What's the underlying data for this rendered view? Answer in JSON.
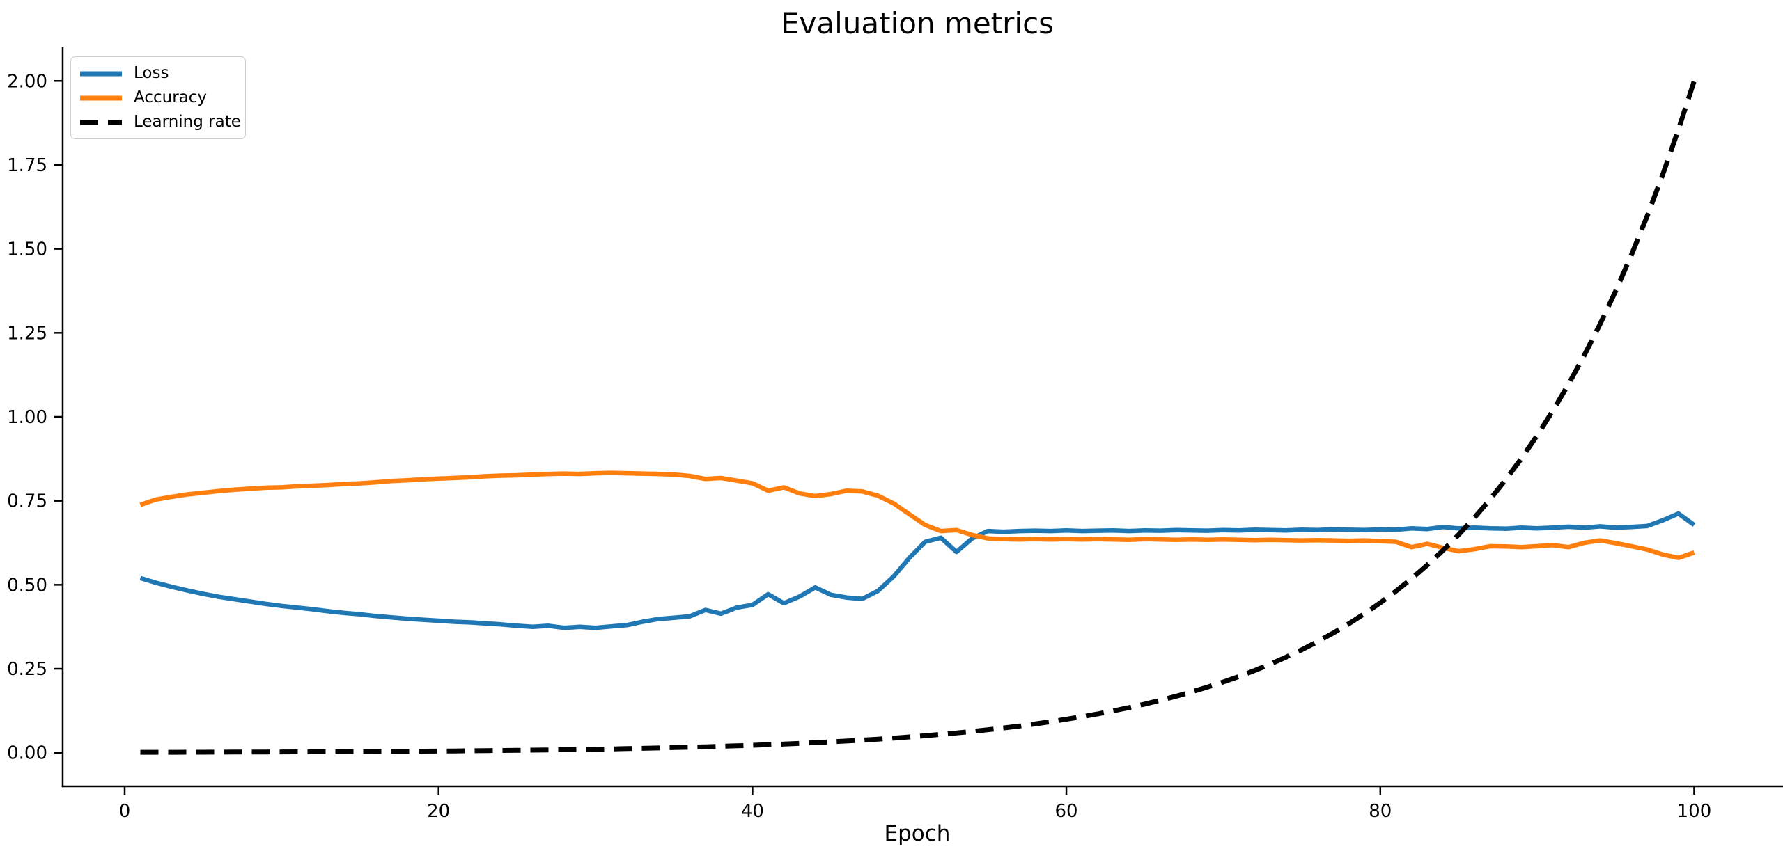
{
  "figure": {
    "background": "#ffffff"
  },
  "chart_data": {
    "type": "line",
    "title": "Evaluation metrics",
    "xlabel": "Epoch",
    "ylabel": "",
    "grid": false,
    "legend_position": "upper-left",
    "xlim": [
      -3.95,
      104.95
    ],
    "ylim": [
      -0.1,
      2.1
    ],
    "axis_color": "#000000",
    "text_color": "#000000",
    "xticks": [
      {
        "value": 0,
        "label": "0"
      },
      {
        "value": 20,
        "label": "20"
      },
      {
        "value": 40,
        "label": "40"
      },
      {
        "value": 60,
        "label": "60"
      },
      {
        "value": 80,
        "label": "80"
      },
      {
        "value": 100,
        "label": "100"
      }
    ],
    "yticks": [
      {
        "value": 0.0,
        "label": "0.00"
      },
      {
        "value": 0.25,
        "label": "0.25"
      },
      {
        "value": 0.5,
        "label": "0.50"
      },
      {
        "value": 0.75,
        "label": "0.75"
      },
      {
        "value": 1.0,
        "label": "1.00"
      },
      {
        "value": 1.25,
        "label": "1.25"
      },
      {
        "value": 1.5,
        "label": "1.50"
      },
      {
        "value": 1.75,
        "label": "1.75"
      },
      {
        "value": 2.0,
        "label": "2.00"
      }
    ],
    "x": [
      1,
      2,
      3,
      4,
      5,
      6,
      7,
      8,
      9,
      10,
      11,
      12,
      13,
      14,
      15,
      16,
      17,
      18,
      19,
      20,
      21,
      22,
      23,
      24,
      25,
      26,
      27,
      28,
      29,
      30,
      31,
      32,
      33,
      34,
      35,
      36,
      37,
      38,
      39,
      40,
      41,
      42,
      43,
      44,
      45,
      46,
      47,
      48,
      49,
      50,
      51,
      52,
      53,
      54,
      55,
      56,
      57,
      58,
      59,
      60,
      61,
      62,
      63,
      64,
      65,
      66,
      67,
      68,
      69,
      70,
      71,
      72,
      73,
      74,
      75,
      76,
      77,
      78,
      79,
      80,
      81,
      82,
      83,
      84,
      85,
      86,
      87,
      88,
      89,
      90,
      91,
      92,
      93,
      94,
      95,
      96,
      97,
      98,
      99,
      100
    ],
    "series": [
      {
        "name": "Loss",
        "color": "#1f77b4",
        "line_width": 6.5,
        "dash": null,
        "values": [
          0.52,
          0.506,
          0.494,
          0.483,
          0.473,
          0.464,
          0.457,
          0.45,
          0.443,
          0.437,
          0.432,
          0.427,
          0.421,
          0.416,
          0.412,
          0.407,
          0.403,
          0.399,
          0.396,
          0.393,
          0.39,
          0.388,
          0.385,
          0.382,
          0.378,
          0.375,
          0.378,
          0.372,
          0.375,
          0.372,
          0.376,
          0.38,
          0.39,
          0.398,
          0.402,
          0.406,
          0.425,
          0.414,
          0.432,
          0.44,
          0.472,
          0.445,
          0.465,
          0.492,
          0.47,
          0.462,
          0.458,
          0.482,
          0.525,
          0.58,
          0.628,
          0.64,
          0.598,
          0.638,
          0.66,
          0.658,
          0.66,
          0.661,
          0.66,
          0.662,
          0.66,
          0.661,
          0.662,
          0.66,
          0.662,
          0.661,
          0.663,
          0.662,
          0.661,
          0.663,
          0.662,
          0.664,
          0.663,
          0.662,
          0.664,
          0.663,
          0.665,
          0.664,
          0.663,
          0.665,
          0.664,
          0.668,
          0.666,
          0.672,
          0.668,
          0.67,
          0.668,
          0.667,
          0.67,
          0.668,
          0.67,
          0.673,
          0.67,
          0.674,
          0.67,
          0.672,
          0.675,
          0.692,
          0.712,
          0.678
        ]
      },
      {
        "name": "Accuracy",
        "color": "#ff7f0e",
        "line_width": 6.5,
        "dash": null,
        "values": [
          0.738,
          0.754,
          0.762,
          0.769,
          0.774,
          0.779,
          0.783,
          0.786,
          0.789,
          0.79,
          0.793,
          0.795,
          0.797,
          0.8,
          0.802,
          0.805,
          0.809,
          0.811,
          0.814,
          0.816,
          0.818,
          0.82,
          0.823,
          0.825,
          0.826,
          0.828,
          0.83,
          0.831,
          0.83,
          0.832,
          0.833,
          0.832,
          0.831,
          0.83,
          0.828,
          0.824,
          0.815,
          0.818,
          0.81,
          0.802,
          0.78,
          0.79,
          0.772,
          0.764,
          0.77,
          0.78,
          0.778,
          0.765,
          0.742,
          0.71,
          0.678,
          0.66,
          0.663,
          0.648,
          0.638,
          0.636,
          0.635,
          0.636,
          0.635,
          0.636,
          0.635,
          0.636,
          0.635,
          0.634,
          0.636,
          0.635,
          0.634,
          0.635,
          0.634,
          0.635,
          0.634,
          0.633,
          0.634,
          0.633,
          0.632,
          0.633,
          0.632,
          0.631,
          0.632,
          0.63,
          0.628,
          0.612,
          0.622,
          0.61,
          0.6,
          0.606,
          0.615,
          0.614,
          0.612,
          0.615,
          0.618,
          0.612,
          0.625,
          0.632,
          0.624,
          0.615,
          0.605,
          0.59,
          0.58,
          0.596
        ]
      },
      {
        "name": "Learning rate",
        "color": "#000000",
        "line_width": 7,
        "dash": [
          26,
          14
        ],
        "values": [
          0.0012,
          0.0013,
          0.0014,
          0.0015,
          0.0016,
          0.0017,
          0.0019,
          0.002,
          0.0022,
          0.0023,
          0.0025,
          0.0027,
          0.0029,
          0.0032,
          0.0034,
          0.0037,
          0.004,
          0.0043,
          0.0046,
          0.005,
          0.0053,
          0.0058,
          0.0062,
          0.0067,
          0.0072,
          0.0078,
          0.0084,
          0.009,
          0.0097,
          0.0105,
          0.0113,
          0.0122,
          0.0131,
          0.0142,
          0.0153,
          0.0165,
          0.0177,
          0.0191,
          0.0206,
          0.0222,
          0.024,
          0.0258,
          0.0278,
          0.03,
          0.0323,
          0.0348,
          0.0376,
          0.0405,
          0.0436,
          0.047,
          0.0507,
          0.0547,
          0.0589,
          0.0635,
          0.0684,
          0.0738,
          0.0795,
          0.0857,
          0.0924,
          0.0996,
          0.1073,
          0.1157,
          0.1247,
          0.1344,
          0.1449,
          0.1562,
          0.1683,
          0.1815,
          0.1956,
          0.2108,
          0.2272,
          0.2449,
          0.264,
          0.2846,
          0.3067,
          0.3306,
          0.3564,
          0.3841,
          0.4141,
          0.4463,
          0.4811,
          0.5185,
          0.5589,
          0.6025,
          0.6494,
          0.7,
          0.7545,
          0.8133,
          0.8766,
          0.9449,
          1.0185,
          1.0978,
          1.1833,
          1.2754,
          1.3748,
          1.4818,
          1.5973,
          1.7217,
          1.8558,
          2.0
        ]
      }
    ]
  }
}
